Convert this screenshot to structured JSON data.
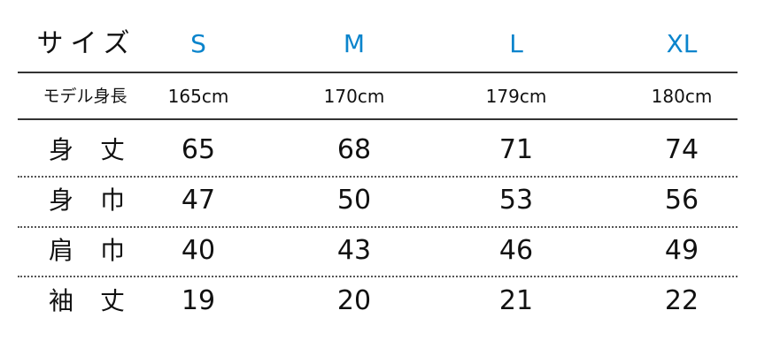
{
  "header": {
    "label": "サイズ",
    "sizes": [
      "S",
      "M",
      "L",
      "XL"
    ]
  },
  "model": {
    "label": "モデル身長",
    "values": [
      "165cm",
      "170cm",
      "179cm",
      "180cm"
    ]
  },
  "rows": [
    {
      "label": "身丈",
      "values": [
        "65",
        "68",
        "71",
        "74"
      ]
    },
    {
      "label": "身巾",
      "values": [
        "47",
        "50",
        "53",
        "56"
      ]
    },
    {
      "label": "肩巾",
      "values": [
        "40",
        "43",
        "46",
        "49"
      ]
    },
    {
      "label": "袖丈",
      "values": [
        "19",
        "20",
        "21",
        "22"
      ]
    }
  ],
  "colors": {
    "size_header": "#0a84cc",
    "text": "#111111"
  }
}
